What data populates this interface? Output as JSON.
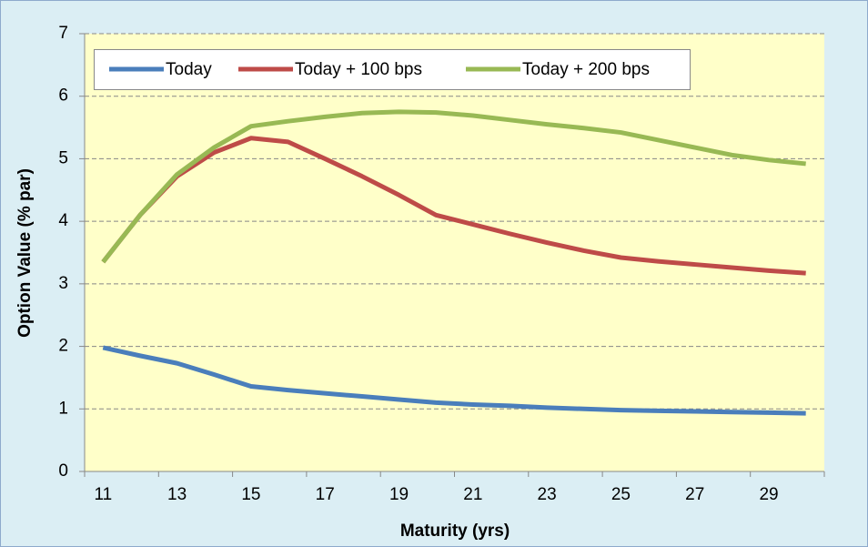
{
  "chart_data": {
    "type": "line",
    "xlabel": "Maturity (yrs)",
    "ylabel": "Option Value (% par)",
    "categories": [
      "11",
      null,
      "13",
      null,
      "15",
      null,
      "17",
      null,
      "19",
      null,
      "21",
      null,
      "23",
      null,
      "25",
      null,
      "27",
      null,
      "29",
      null
    ],
    "series": [
      {
        "name": "Today",
        "color": "#4a7ebb",
        "values": [
          1.98,
          1.85,
          1.73,
          1.55,
          1.36,
          1.3,
          1.25,
          1.2,
          1.15,
          1.1,
          1.07,
          1.05,
          1.02,
          1.0,
          0.98,
          0.97,
          0.96,
          0.95,
          0.94,
          0.93
        ]
      },
      {
        "name": "Today + 100 bps",
        "color": "#be4b48",
        "values": [
          3.35,
          4.1,
          4.72,
          5.1,
          5.33,
          5.27,
          5.0,
          4.72,
          4.42,
          4.1,
          3.95,
          3.8,
          3.66,
          3.53,
          3.42,
          3.36,
          3.31,
          3.26,
          3.21,
          3.17
        ]
      },
      {
        "name": "Today + 200 bps",
        "color": "#98b954",
        "values": [
          3.35,
          4.1,
          4.75,
          5.18,
          5.52,
          5.6,
          5.67,
          5.73,
          5.75,
          5.74,
          5.69,
          5.62,
          5.55,
          5.49,
          5.42,
          5.3,
          5.18,
          5.06,
          4.98,
          4.92
        ]
      }
    ],
    "ylim": [
      0,
      7
    ],
    "yticks": [
      0,
      1,
      2,
      3,
      4,
      5,
      6,
      7
    ],
    "grid": true,
    "legend": "top"
  }
}
